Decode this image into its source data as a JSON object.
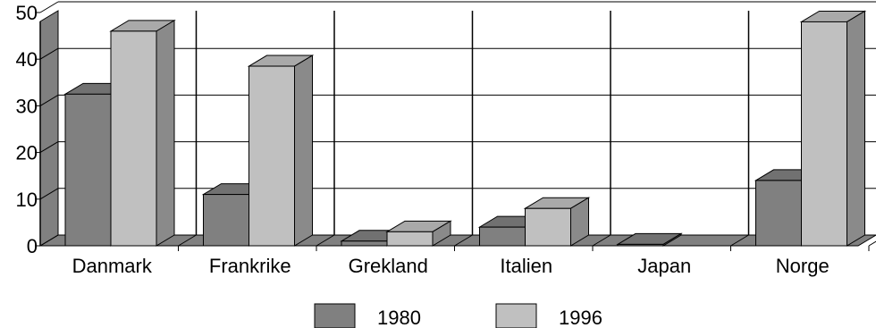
{
  "chart_data": {
    "type": "bar",
    "subtype": "3d-clustered-column",
    "categories": [
      "Danmark",
      "Frankrike",
      "Grekland",
      "Italien",
      "Japan",
      "Norge"
    ],
    "series": [
      {
        "name": "1980",
        "values": [
          32.5,
          11,
          1,
          4,
          0.3,
          14
        ],
        "color": "#808080"
      },
      {
        "name": "1996",
        "values": [
          46,
          38.5,
          3,
          8,
          0,
          48
        ],
        "color": "#c0c0c0"
      }
    ],
    "yticks": [
      "0",
      "10",
      "20",
      "30",
      "40",
      "50"
    ],
    "ylim": [
      0,
      50
    ],
    "grid": true,
    "legend_position": "bottom"
  }
}
